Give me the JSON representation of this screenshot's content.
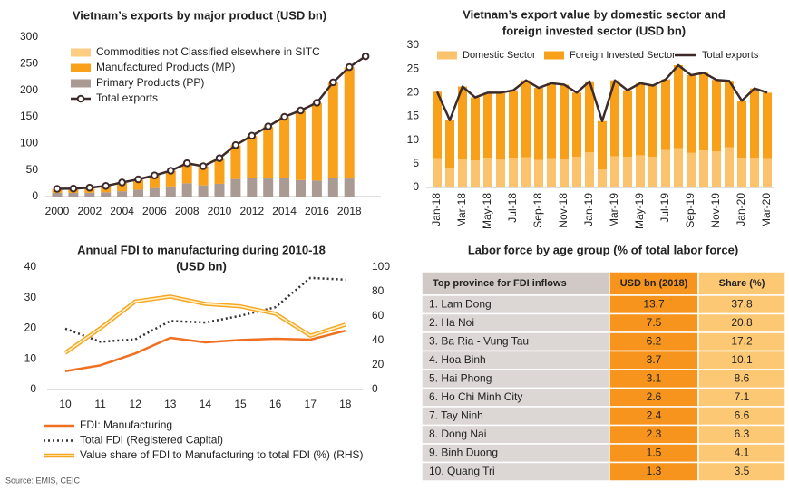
{
  "chart_data": [
    {
      "type": "bar",
      "stacked": true,
      "title": "Vietnam’s exports by major product (USD bn)",
      "categories": [
        "2000",
        null,
        "2002",
        null,
        "2004",
        null,
        "2006",
        null,
        "2008",
        null,
        "2010",
        null,
        "2012",
        null,
        "2014",
        null,
        "2016",
        null,
        "2018",
        null
      ],
      "series": [
        {
          "name": "Primary Products (PP)",
          "color": "#a99a94",
          "values": [
            7,
            7,
            7,
            8,
            10,
            13,
            16,
            19,
            25,
            21,
            24,
            33,
            35,
            34,
            35,
            31,
            30,
            35,
            34,
            null
          ]
        },
        {
          "name": "Manufactured Products (MP)",
          "color": "#f9a11b",
          "values": [
            7,
            7.5,
            9.2,
            11.5,
            16,
            18.9,
            23.3,
            29.1,
            37,
            35.5,
            47.5,
            63,
            78.5,
            97,
            114,
            130,
            145.6,
            179,
            208.7,
            null
          ]
        },
        {
          "name": "Commodities not Classified elsewhere in SITC",
          "color": "#fdcd83",
          "values": [
            0.5,
            0.5,
            0.5,
            0.5,
            0.5,
            0.5,
            0.5,
            0.5,
            0.7,
            0.6,
            0.7,
            0.9,
            1,
            1,
            1,
            1,
            1,
            1,
            1,
            null
          ]
        },
        {
          "name": "Total exports",
          "type": "line",
          "markers": true,
          "color": "#3d2b2b",
          "values": [
            14.5,
            15,
            16.7,
            20,
            26.5,
            32.4,
            39.8,
            48.6,
            62.7,
            57.1,
            72.2,
            96.9,
            114.5,
            132,
            150,
            162,
            176.6,
            215,
            243.7,
            264
          ]
        }
      ],
      "ylim": [
        0,
        300
      ],
      "yticks": [
        0,
        50,
        100,
        150,
        200,
        250,
        300
      ]
    },
    {
      "type": "bar",
      "stacked": true,
      "title": [
        "Vietnam’s export value by domestic sector and",
        "foreign invested sector (USD bn)"
      ],
      "categories": [
        "Jan-18",
        null,
        "Mar-18",
        null,
        "May-18",
        null,
        "Jul-18",
        null,
        "Sep-18",
        null,
        "Nov-18",
        null,
        "Jan-19",
        null,
        "Mar-19",
        null,
        "May-19",
        null,
        "Jul-19",
        null,
        "Sep-19",
        null,
        "Nov-19",
        null,
        "Jan-20",
        null,
        "Mar-20"
      ],
      "series": [
        {
          "name": "Domestic Sector",
          "color": "#fbc36e",
          "values": [
            6.2,
            4,
            6,
            5.7,
            6.3,
            6.1,
            6.3,
            6.4,
            5.8,
            6.2,
            6,
            6.5,
            7.4,
            3.8,
            6.6,
            6.5,
            6.8,
            6.5,
            7.9,
            8.3,
            7.3,
            7.8,
            7.6,
            8.5,
            6.3,
            6.3,
            6.2
          ]
        },
        {
          "name": "Foreign Invested Sector",
          "color": "#f8a01a",
          "values": [
            14,
            10.2,
            15.3,
            13.3,
            13.7,
            13.9,
            14.2,
            16.2,
            15.2,
            15.8,
            15.7,
            13.5,
            15,
            10.2,
            16,
            14,
            15.2,
            15,
            14.9,
            17.5,
            16.4,
            16.4,
            15.1,
            14,
            12,
            14.6,
            13.8
          ]
        },
        {
          "name": "Total exports",
          "type": "line",
          "color": "#3d2b2b",
          "values": [
            20.2,
            14.2,
            21.3,
            19,
            20,
            20,
            20.5,
            22.6,
            21,
            22,
            21.7,
            20,
            22.4,
            14,
            22.6,
            20.5,
            22,
            21.5,
            22.8,
            25.8,
            23.7,
            24.2,
            22.7,
            22.5,
            18.3,
            20.9,
            20
          ]
        }
      ],
      "ylim": [
        0,
        30
      ],
      "yticks": [
        0,
        5,
        10,
        15,
        20,
        25,
        30
      ]
    },
    {
      "type": "line",
      "title": [
        "Annual FDI to manufacturing during 2010-18",
        "(USD bn)"
      ],
      "categories": [
        "10",
        "11",
        "12",
        "13",
        "14",
        "15",
        "16",
        "17",
        "18"
      ],
      "series": [
        {
          "name": "FDI: Manufacturing",
          "color": "#f07022",
          "style": "solid",
          "values": [
            6,
            7.9,
            11.8,
            16.9,
            15.4,
            16.2,
            16.6,
            16.3,
            19.2
          ]
        },
        {
          "name": "Total FDI (Registered Capital)",
          "color": "#333333",
          "style": "dotted",
          "values": [
            19.9,
            15.6,
            16.4,
            22.4,
            21.9,
            24.1,
            26.9,
            36.5,
            35.9
          ]
        },
        {
          "name": "Value share of FDI to Manufacturing to total FDI (%) (RHS)",
          "color": "#f5a623",
          "style": "double",
          "axis": "y2",
          "values": [
            30,
            50,
            72,
            76,
            70,
            68,
            62,
            44,
            53
          ]
        }
      ],
      "ylim": [
        0,
        40
      ],
      "yticks": [
        0,
        10,
        20,
        30,
        40
      ],
      "y2lim": [
        0,
        100
      ],
      "y2ticks": [
        0,
        20,
        40,
        60,
        80,
        100
      ]
    }
  ],
  "table": {
    "title": "Labor force by age group (% of total labor force)",
    "columns": [
      "Top province for FDI inflows",
      "USD bn (2018)",
      "Share (%)"
    ],
    "rows": [
      [
        "1. Lam Dong",
        "13.7",
        "37.8"
      ],
      [
        "2. Ha Noi",
        "7.5",
        "20.8"
      ],
      [
        "3. Ba Ria - Vung Tau",
        "6.2",
        "17.2"
      ],
      [
        "4. Hoa Binh",
        "3.7",
        "10.1"
      ],
      [
        "5. Hai Phong",
        "3.1",
        "8.6"
      ],
      [
        "6. Ho Chi Minh City",
        "2.6",
        "7.1"
      ],
      [
        "7. Tay Ninh",
        "2.4",
        "6.6"
      ],
      [
        "8. Dong Nai",
        "2.3",
        "6.3"
      ],
      [
        "9. Binh Duong",
        "1.5",
        "4.1"
      ],
      [
        "10. Quang Tri",
        "1.3",
        "3.5"
      ]
    ]
  },
  "source": "Source: EMIS, CEIC"
}
